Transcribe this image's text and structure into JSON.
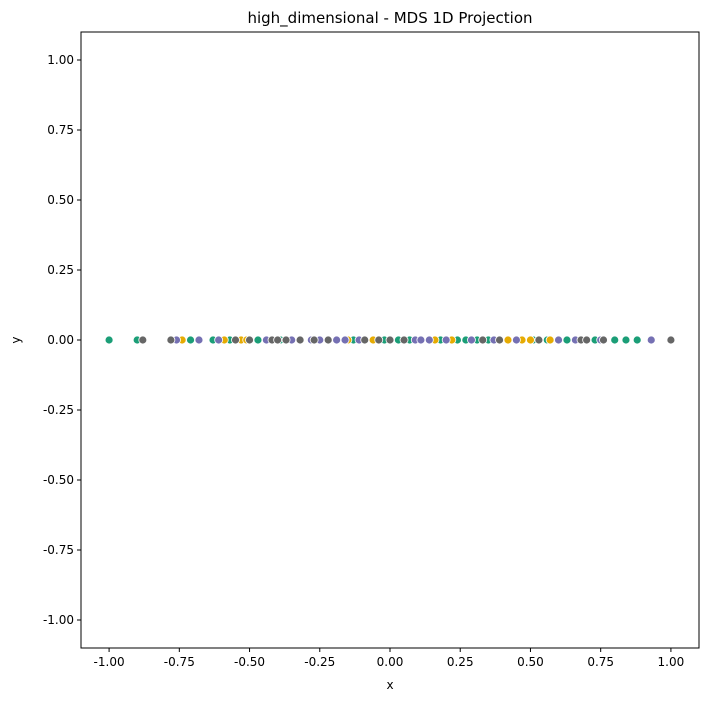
{
  "chart_data": {
    "type": "scatter",
    "title": "high_dimensional - MDS 1D Projection",
    "xlabel": "x",
    "ylabel": "y",
    "xlim": [
      -1.1,
      1.1
    ],
    "ylim": [
      -1.1,
      1.1
    ],
    "xticks": [
      "-1.00",
      "-0.75",
      "-0.50",
      "-0.25",
      "0.00",
      "0.25",
      "0.50",
      "0.75",
      "1.00"
    ],
    "yticks": [
      "1.00",
      "0.75",
      "0.50",
      "0.25",
      "0.00",
      "-0.25",
      "-0.50",
      "-0.75",
      "-1.00"
    ],
    "grid": false,
    "marker_edge_color": "#ffffff",
    "series": [
      {
        "color": "#1b9e77",
        "x": [
          -1.0,
          -0.9,
          -0.71,
          -0.63,
          -0.57,
          -0.47,
          -0.39,
          -0.13,
          -0.02,
          0.03,
          0.07,
          0.18,
          0.24,
          0.27,
          0.31,
          0.35,
          0.51,
          0.56,
          0.63,
          0.73,
          0.8,
          0.84,
          0.88
        ],
        "y": [
          0,
          0,
          0,
          0,
          0,
          0,
          0,
          0,
          0,
          0,
          0,
          0,
          0,
          0,
          0,
          0,
          0,
          0,
          0,
          0,
          0,
          0,
          0
        ]
      },
      {
        "color": "#e6ab02",
        "x": [
          -0.74,
          -0.59,
          -0.53,
          -0.51,
          -0.15,
          -0.06,
          0.16,
          0.22,
          0.42,
          0.47,
          0.5,
          0.57
        ],
        "y": [
          0,
          0,
          0,
          0,
          0,
          0,
          0,
          0,
          0,
          0,
          0,
          0
        ]
      },
      {
        "color": "#7570b3",
        "x": [
          -0.76,
          -0.68,
          -0.61,
          -0.44,
          -0.35,
          -0.28,
          -0.25,
          -0.19,
          -0.16,
          -0.11,
          0.09,
          0.11,
          0.14,
          0.2,
          0.29,
          0.37,
          0.45,
          0.6,
          0.66,
          0.75,
          0.93
        ],
        "y": [
          0,
          0,
          0,
          0,
          0,
          0,
          0,
          0,
          0,
          0,
          0,
          0,
          0,
          0,
          0,
          0,
          0,
          0,
          0,
          0,
          0
        ]
      },
      {
        "color": "#666666",
        "x": [
          -0.88,
          -0.78,
          -0.55,
          -0.5,
          -0.42,
          -0.4,
          -0.37,
          -0.32,
          -0.27,
          -0.22,
          -0.09,
          -0.04,
          0.0,
          0.05,
          0.33,
          0.39,
          0.53,
          0.68,
          0.7,
          0.76,
          1.0
        ],
        "y": [
          0,
          0,
          0,
          0,
          0,
          0,
          0,
          0,
          0,
          0,
          0,
          0,
          0,
          0,
          0,
          0,
          0,
          0,
          0,
          0,
          0
        ]
      }
    ]
  }
}
